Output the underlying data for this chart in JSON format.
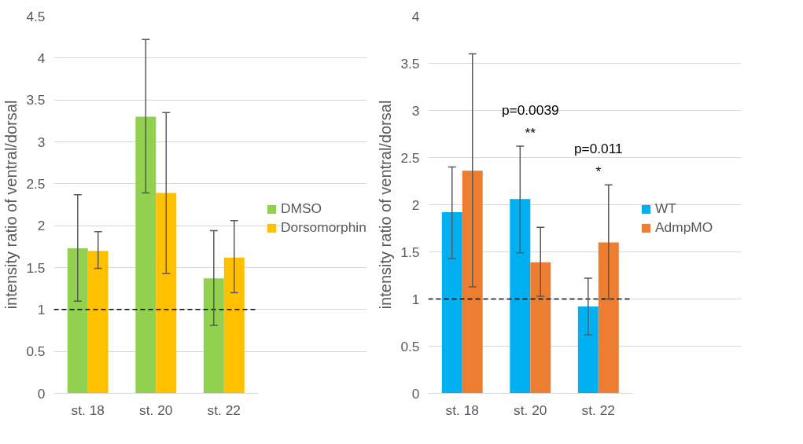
{
  "chart_data": [
    {
      "type": "bar",
      "ylabel": "intensity ratio of ventral/dorsal",
      "categories": [
        "st. 18",
        "st. 20",
        "st. 22"
      ],
      "series": [
        {
          "name": "DMSO",
          "color": "#92d050",
          "values": [
            1.73,
            3.3,
            1.37
          ],
          "errors": [
            [
              1.1,
              2.37
            ],
            [
              2.39,
              4.22
            ],
            [
              0.81,
              1.94
            ]
          ]
        },
        {
          "name": "Dorsomorphin",
          "color": "#ffc000",
          "values": [
            1.7,
            2.39,
            1.62
          ],
          "errors": [
            [
              1.49,
              1.93
            ],
            [
              1.43,
              3.35
            ],
            [
              1.2,
              2.06
            ]
          ]
        }
      ],
      "ylim": [
        0,
        4.5
      ],
      "yticks": [
        0,
        0.5,
        1,
        1.5,
        2,
        2.5,
        3,
        3.5,
        4,
        4.5
      ],
      "grid": "y",
      "legend": "right",
      "ref_lines": [
        {
          "axis": "y",
          "value": 1,
          "color": "#000000",
          "line_style": "dashed"
        }
      ]
    },
    {
      "type": "bar",
      "ylabel": "intensity ratio of ventral/dorsal",
      "categories": [
        "st. 18",
        "st. 20",
        "st. 22"
      ],
      "series": [
        {
          "name": "WT",
          "color": "#00b0f0",
          "values": [
            1.92,
            2.06,
            0.92
          ],
          "errors": [
            [
              1.43,
              2.4
            ],
            [
              1.49,
              2.62
            ],
            [
              0.62,
              1.22
            ]
          ]
        },
        {
          "name": "AdmpMO",
          "color": "#ed7d31",
          "values": [
            2.36,
            1.39,
            1.6
          ],
          "errors": [
            [
              1.13,
              3.6
            ],
            [
              1.03,
              1.76
            ],
            [
              1.0,
              2.21
            ]
          ]
        }
      ],
      "ylim": [
        0,
        4
      ],
      "yticks": [
        0,
        0.5,
        1,
        1.5,
        2,
        2.5,
        3,
        3.5,
        4
      ],
      "grid": "y",
      "legend": "right",
      "ref_lines": [
        {
          "axis": "y",
          "value": 1,
          "color": "#000000",
          "line_style": "dashed"
        }
      ],
      "annotations": [
        "p=0.0039",
        "**",
        "p=0.011",
        "*"
      ]
    }
  ]
}
